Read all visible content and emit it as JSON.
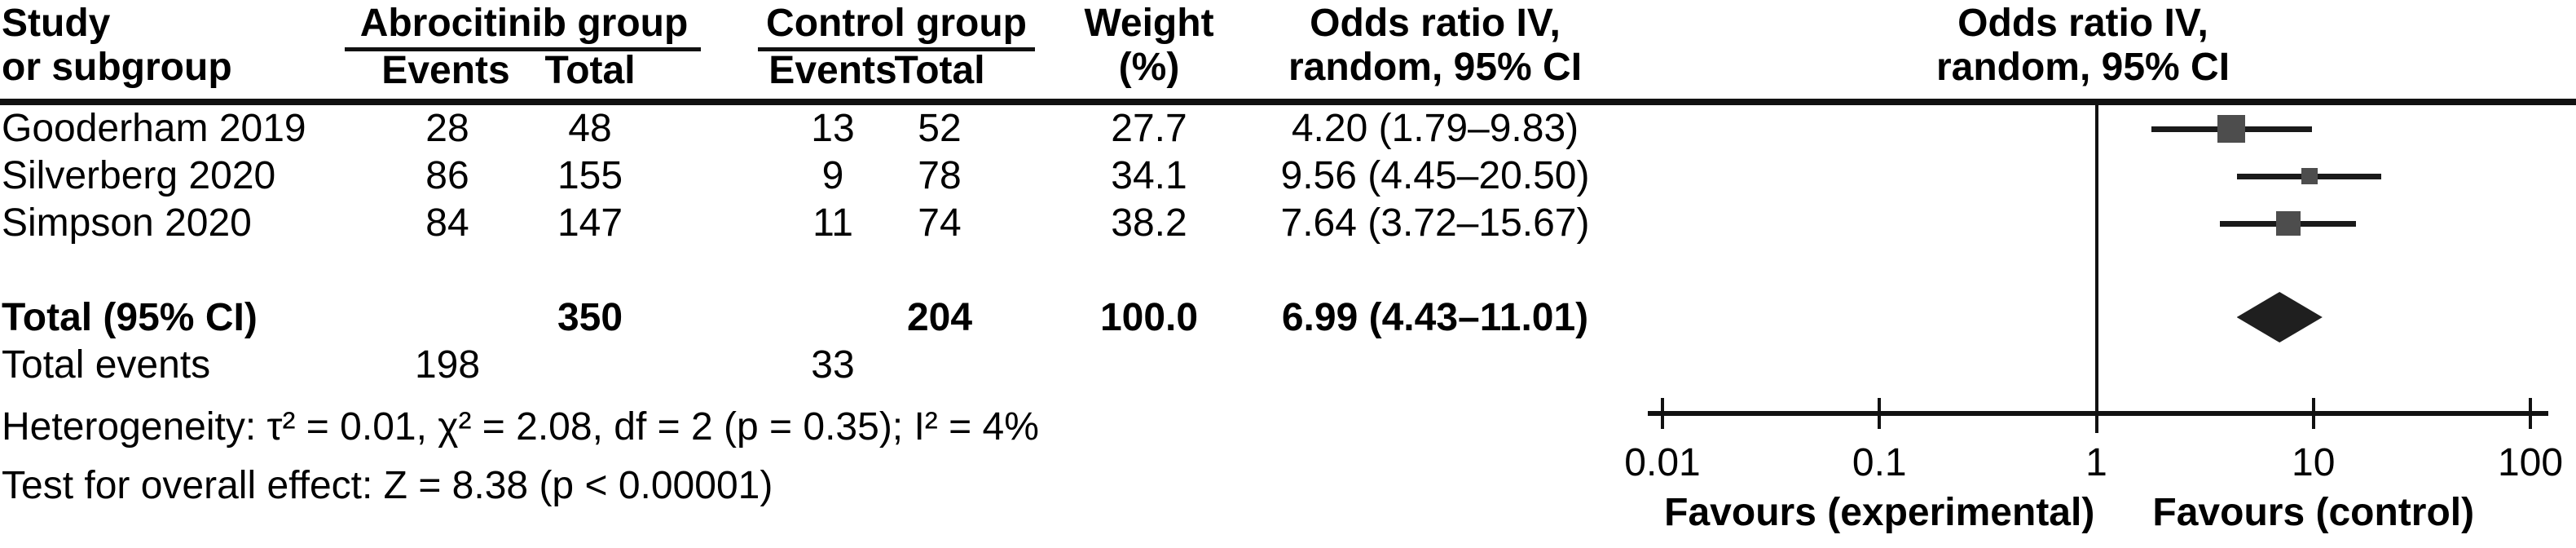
{
  "table": {
    "col_study_line1": "Study",
    "col_study_line2": "or subgroup",
    "group1_label": "Abrocitinib group",
    "group2_label": "Control group",
    "col_events": "Events",
    "col_total": "Total",
    "col_weight_line1": "Weight",
    "col_weight_line2": "(%)",
    "col_or_line1": "Odds ratio IV,",
    "col_or_line2": "random, 95% CI",
    "rows": [
      {
        "study": "Gooderham 2019",
        "events1": "28",
        "total1": "48",
        "events2": "13",
        "total2": "52",
        "weight": "27.7",
        "or_ci": "4.20 (1.79–9.83)"
      },
      {
        "study": "Silverberg 2020",
        "events1": "86",
        "total1": "155",
        "events2": "9",
        "total2": "78",
        "weight": "34.1",
        "or_ci": "9.56 (4.45–20.50)"
      },
      {
        "study": "Simpson 2020",
        "events1": "84",
        "total1": "147",
        "events2": "11",
        "total2": "74",
        "weight": "38.2",
        "or_ci": "7.64 (3.72–15.67)"
      }
    ],
    "total_row": {
      "label": "Total (95% CI)",
      "total1": "350",
      "total2": "204",
      "weight": "100.0",
      "or_ci": "6.99 (4.43–11.01)"
    },
    "total_events_row": {
      "label": "Total events",
      "events1": "198",
      "events2": "33"
    },
    "heterogeneity": "Heterogeneity: τ² = 0.01, χ² = 2.08, df = 2 (p = 0.35); I² = 4%",
    "overall_effect": "Test for overall effect: Z = 8.38 (p < 0.00001)"
  },
  "chart_data": {
    "type": "forest",
    "title": "Odds ratio IV, random, 95% CI",
    "x_scale": "log10",
    "xlim": [
      0.01,
      100
    ],
    "axis_tick_values": [
      0.01,
      0.1,
      1,
      10,
      100
    ],
    "axis_tick_labels": [
      "0.01",
      "0.1",
      "1",
      "10",
      "100"
    ],
    "reference_line_x": 1,
    "favours_left": "Favours (experimental)",
    "favours_right": "Favours (control)",
    "studies": [
      {
        "name": "Gooderham 2019",
        "or": 4.2,
        "ci_low": 1.79,
        "ci_high": 9.83,
        "weight_pct": 27.7
      },
      {
        "name": "Silverberg 2020",
        "or": 9.56,
        "ci_low": 4.45,
        "ci_high": 20.5,
        "weight_pct": 34.1
      },
      {
        "name": "Simpson 2020",
        "or": 7.64,
        "ci_low": 3.72,
        "ci_high": 15.67,
        "weight_pct": 38.2
      }
    ],
    "total": {
      "name": "Total (95% CI)",
      "or": 6.99,
      "ci_low": 4.43,
      "ci_high": 11.01,
      "weight_pct": 100.0
    },
    "marker_sizes_px": [
      34,
      20,
      30
    ],
    "colors": {
      "square": "#4d4d4d",
      "ci_line": "#1a1a1a",
      "diamond": "#1f1f1f",
      "axis": "#111111",
      "text": "#000000"
    }
  }
}
